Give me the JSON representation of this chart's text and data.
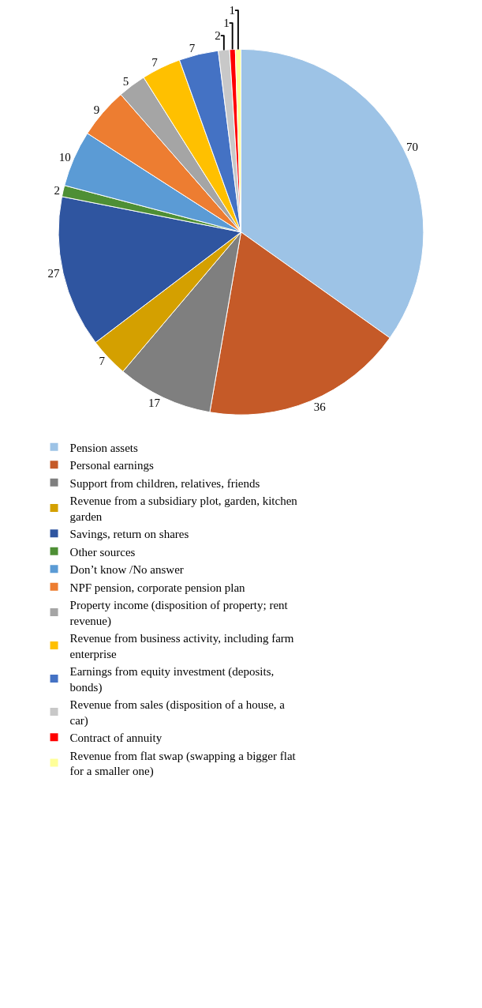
{
  "chart_data": {
    "type": "pie",
    "categories": [
      "Pension assets",
      "Personal earnings",
      "Support from children, relatives, friends",
      "Revenue from a subsidiary plot, garden, kitchen garden",
      "Savings, return on shares",
      "Other sources",
      "Don’t know /No answer",
      "NPF pension, corporate pension plan",
      "Property income (disposition of property; rent revenue)",
      "Revenue from business activity, including farm enterprise",
      "Earnings from equity investment (deposits, bonds)",
      "Revenue from sales (disposition of a house, a car)",
      "Contract of annuity",
      "Revenue from flat swap (swapping a bigger flat for a smaller one)"
    ],
    "values": [
      70,
      36,
      17,
      7,
      27,
      2,
      10,
      9,
      5,
      7,
      7,
      2,
      1,
      1
    ],
    "colors": [
      "#9dc3e6",
      "#c55a28",
      "#7f7f7f",
      "#d4a000",
      "#2f55a0",
      "#4e8f35",
      "#5b9bd5",
      "#ed7d31",
      "#a5a5a5",
      "#ffc000",
      "#4472c4",
      "#c8c8c8",
      "#ff0000",
      "#ffff99"
    ],
    "data_labels": true,
    "legend": "bottom"
  }
}
